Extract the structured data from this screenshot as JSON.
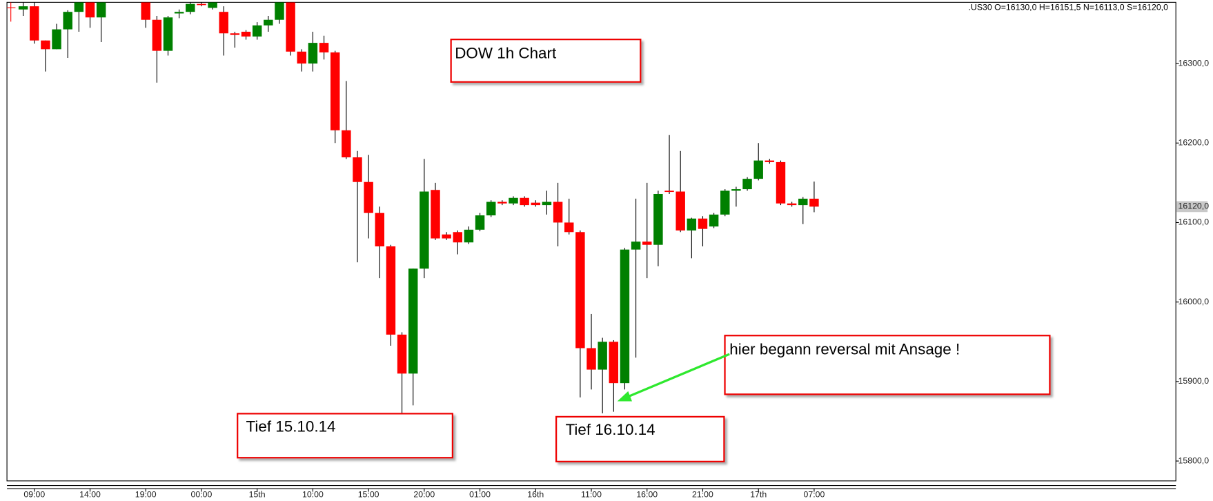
{
  "chart_data": {
    "type": "candlestick",
    "title": "DOW 1h Chart",
    "header": ".US30 O=16130,0 H=16151,5 N=16113,0 S=16120,0",
    "categories": [
      null,
      "09:00",
      null,
      null,
      null,
      null,
      "14:00",
      null,
      null,
      null,
      null,
      "19:00",
      null,
      null,
      null,
      null,
      "00:00",
      null,
      null,
      null,
      null,
      "15th",
      null,
      null,
      null,
      null,
      "10:00",
      null,
      null,
      null,
      null,
      "15:00",
      null,
      null,
      null,
      null,
      "20:00",
      null,
      null,
      null,
      null,
      "01:00",
      null,
      null,
      null,
      null,
      "16th",
      null,
      null,
      null,
      null,
      "11:00",
      null,
      null,
      null,
      null,
      "16:00",
      null,
      null,
      null,
      null,
      "21:00",
      null,
      null,
      null,
      null,
      "17th",
      null,
      null,
      null,
      null,
      "07:00"
    ],
    "open": [
      16368,
      16372,
      16329,
      16318,
      16343,
      16365,
      16377,
      16358,
      null,
      null,
      null,
      16377,
      16355,
      16316,
      16363,
      16365,
      16375,
      16370,
      16365,
      16338,
      16340,
      16334,
      16348,
      16355,
      16377,
      16315,
      16300,
      16326,
      16314,
      16216,
      16182,
      16151,
      16112,
      16070,
      15959,
      15910,
      16042,
      16141,
      16085,
      16088,
      16075,
      16091,
      16109,
      16126,
      16124,
      16131,
      16125,
      16122,
      16126,
      16100,
      16088,
      15942,
      15915,
      15950,
      15898,
      16066,
      16076,
      16072,
      16140,
      16139,
      16090,
      16105,
      16095,
      16110,
      16140,
      16142,
      16155,
      16178,
      16176,
      16124,
      16122,
      16130
    ],
    "high": [
      16377,
      16377,
      16329,
      16350,
      16367,
      16377,
      16377,
      16377,
      null,
      null,
      null,
      16377,
      16360,
      16360,
      16368,
      16377,
      16377,
      16377,
      16372,
      16340,
      16342,
      16352,
      16360,
      16377,
      16377,
      16318,
      16340,
      16335,
      16316,
      16278,
      16190,
      16185,
      16120,
      16072,
      15962,
      16042,
      16180,
      16150,
      16088,
      16090,
      16095,
      16112,
      16128,
      16128,
      16133,
      16133,
      16128,
      16140,
      16150,
      16130,
      16090,
      15985,
      15955,
      15952,
      16068,
      16130,
      16150,
      16140,
      16210,
      16190,
      16106,
      16108,
      16112,
      16142,
      16145,
      16157,
      16200,
      16180,
      16178,
      16126,
      16132,
      16151.5
    ],
    "low": [
      16360,
      16325,
      16290,
      16318,
      16307,
      16340,
      16345,
      16327,
      null,
      null,
      null,
      16345,
      16276,
      16310,
      16357,
      16362,
      16372,
      16368,
      16310,
      16320,
      16330,
      16330,
      16340,
      16350,
      16310,
      16290,
      16290,
      16305,
      16200,
      16180,
      16050,
      16080,
      16030,
      15945,
      15860,
      15870,
      16030,
      16078,
      16078,
      16060,
      16073,
      16089,
      16107,
      16122,
      16122,
      16120,
      16120,
      16110,
      16070,
      16085,
      15880,
      15890,
      15860,
      15862,
      15890,
      15930,
      16030,
      16045,
      16136,
      16088,
      16055,
      16070,
      16093,
      16108,
      16120,
      16140,
      16153,
      16174,
      16122,
      16120,
      16098,
      16113
    ],
    "close": [
      16372,
      16329,
      16318,
      16343,
      16365,
      16377,
      16358,
      16377,
      null,
      null,
      null,
      16355,
      16316,
      16358,
      16365,
      16375,
      16374,
      16377,
      16338,
      16336,
      16334,
      16348,
      16355,
      16377,
      16315,
      16300,
      16326,
      16314,
      16216,
      16182,
      16151,
      16112,
      16070,
      15959,
      15910,
      16042,
      16139,
      16080,
      16080,
      16075,
      16091,
      16109,
      16126,
      16124,
      16131,
      16122,
      16122,
      16126,
      16100,
      16088,
      15942,
      15915,
      15950,
      15898,
      16066,
      16076,
      16072,
      16136,
      16139,
      16090,
      16105,
      16092,
      16110,
      16140,
      16142,
      16155,
      16178,
      16176,
      16124,
      16122,
      16130,
      16120
    ],
    "up_color": "#008000",
    "down_color": "#ff0000",
    "ylim": [
      15775,
      16377
    ],
    "yticks": [
      {
        "value": 15800,
        "label": "15800,0"
      },
      {
        "value": 15900,
        "label": "15900,0"
      },
      {
        "value": 16000,
        "label": "16000,0"
      },
      {
        "value": 16100,
        "label": "16100,0"
      },
      {
        "value": 16200,
        "label": "16200,0"
      },
      {
        "value": 16300,
        "label": "16300,0"
      }
    ],
    "last_price": {
      "value": 16120,
      "label": "16120,0"
    },
    "annotations": [
      "Tief 15.10.14",
      "Tief 16.10.14",
      "hier begann reversal mit Ansage !"
    ]
  }
}
